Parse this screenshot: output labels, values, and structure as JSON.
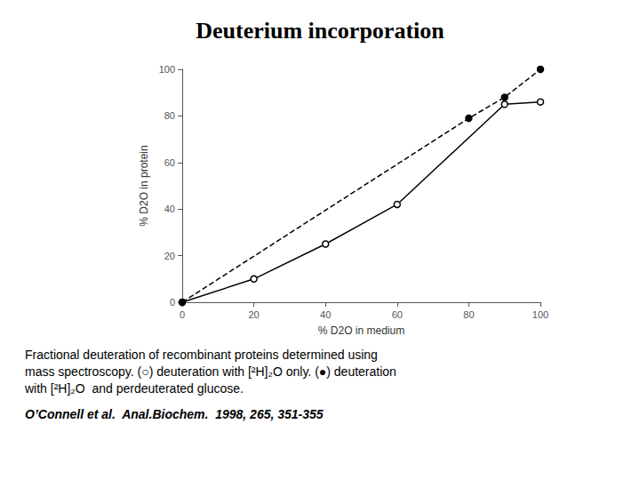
{
  "chart_data": {
    "type": "line",
    "title": "Deuterium incorporation",
    "xlabel": "% D2O in medium",
    "ylabel": "% D2O in protein",
    "xlim": [
      0,
      100
    ],
    "ylim": [
      0,
      100
    ],
    "xticks": [
      0,
      20,
      40,
      60,
      80,
      100
    ],
    "yticks": [
      0,
      20,
      40,
      60,
      80,
      100
    ],
    "grid": false,
    "series": [
      {
        "x": [
          0,
          20,
          40,
          60,
          90,
          100
        ],
        "values": [
          0,
          10,
          25,
          42,
          85,
          86
        ],
        "color": "#000000",
        "marker": "open_circle",
        "line_style": "solid"
      },
      {
        "x": [
          0,
          80,
          90,
          100
        ],
        "values": [
          0,
          79,
          88,
          100
        ],
        "color": "#000000",
        "marker": "filled_circle",
        "line_style": "dashed"
      }
    ],
    "annotations": [
      "Fractional deuteration of recombinant proteins determined using",
      "mass spectroscopy. (○) deuteration with [²H]₂O only. (●) deuteration",
      "with [²H]₂O  and perdeuterated glucose.",
      "O’Connell et al.  Anal.Biochem.  1998, 265, 351-355"
    ]
  }
}
